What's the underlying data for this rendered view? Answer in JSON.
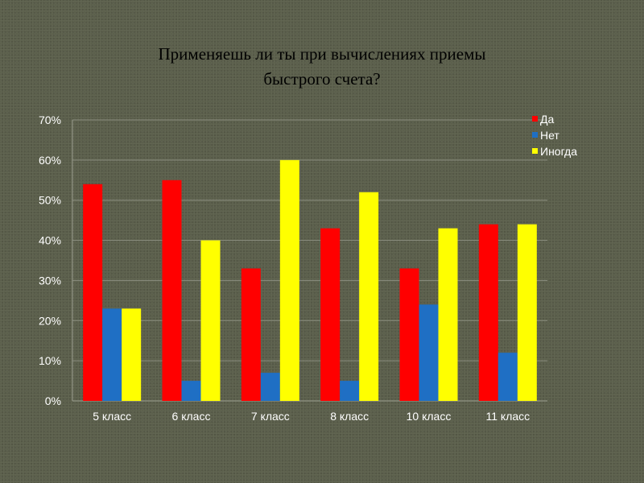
{
  "title": {
    "line1": "Применяешь ли ты при вычислениях приемы",
    "line2": "быстрого счета?"
  },
  "chart_data": {
    "type": "bar",
    "categories": [
      "5 класс",
      "6 класс",
      "7 класс",
      "8 класс",
      "10 класс",
      "11 класс"
    ],
    "series": [
      {
        "name": "Да",
        "color": "#ff0000",
        "values": [
          54,
          55,
          33,
          43,
          33,
          44
        ]
      },
      {
        "name": "Нет",
        "color": "#1f6fc4",
        "values": [
          23,
          5,
          7,
          5,
          24,
          12
        ]
      },
      {
        "name": "Иногда",
        "color": "#ffff00",
        "values": [
          23,
          40,
          60,
          52,
          43,
          44
        ]
      }
    ],
    "ylim": [
      0,
      70
    ],
    "yticks": [
      "0%",
      "10%",
      "20%",
      "30%",
      "40%",
      "50%",
      "60%",
      "70%"
    ],
    "grid": true,
    "legend_position": "top-right"
  }
}
